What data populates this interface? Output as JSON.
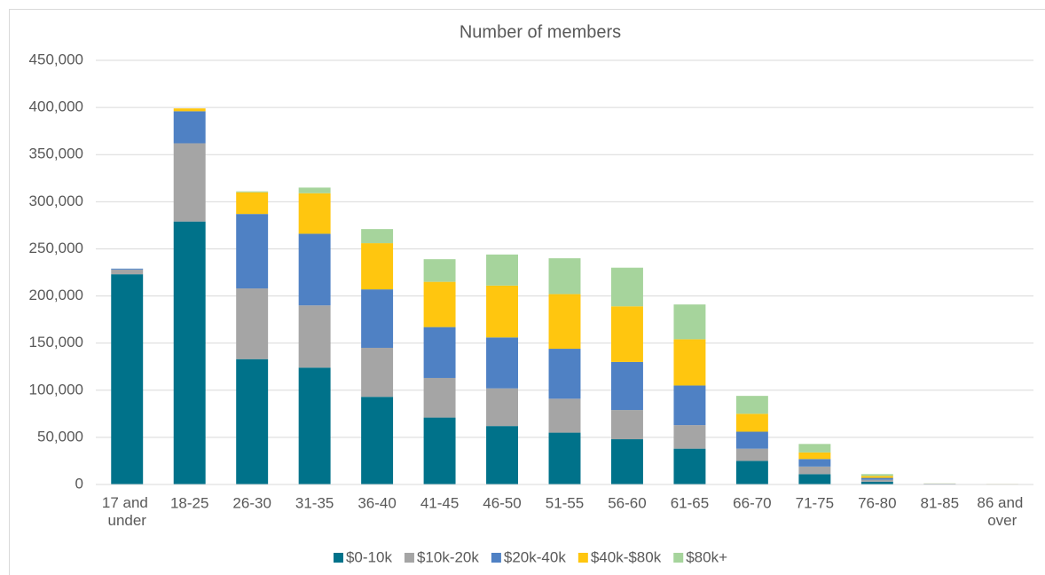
{
  "chart_data": {
    "type": "stacked_bar",
    "title": "Number of members",
    "categories": [
      "17 and under",
      "18-25",
      "26-30",
      "31-35",
      "36-40",
      "41-45",
      "46-50",
      "51-55",
      "56-60",
      "61-65",
      "66-70",
      "71-75",
      "76-80",
      "81-85",
      "86 and over"
    ],
    "series": [
      {
        "name": "$0-10k",
        "color": "#00728a",
        "values": [
          223000,
          279000,
          133000,
          124000,
          93000,
          71000,
          62000,
          55000,
          48000,
          38000,
          25000,
          11000,
          3000,
          500,
          300
        ]
      },
      {
        "name": "$10k-20k",
        "color": "#a5a5a5",
        "values": [
          5000,
          83000,
          75000,
          66000,
          52000,
          42000,
          40000,
          36000,
          31000,
          25000,
          13000,
          8000,
          2000,
          200,
          100
        ]
      },
      {
        "name": "$20k-40k",
        "color": "#4f81c4",
        "values": [
          1000,
          34000,
          79000,
          76000,
          62000,
          54000,
          54000,
          53000,
          51000,
          42000,
          18000,
          8000,
          2000,
          200,
          100
        ]
      },
      {
        "name": "$40k-$80k",
        "color": "#ffc60f",
        "values": [
          0,
          3000,
          23000,
          43000,
          49000,
          48000,
          55000,
          58000,
          59000,
          49000,
          19000,
          7000,
          2000,
          100,
          50
        ]
      },
      {
        "name": "$80k+",
        "color": "#a6d49c",
        "values": [
          0,
          0,
          1000,
          6000,
          15000,
          24000,
          33000,
          38000,
          41000,
          37000,
          19000,
          9000,
          2000,
          100,
          50
        ]
      }
    ],
    "ylim": [
      0,
      450000
    ],
    "yticks": [
      0,
      {
        "value": 50000,
        "label": "50,000"
      },
      {
        "value": 100000,
        "label": "100,000"
      },
      {
        "value": 150000,
        "label": "150,000"
      },
      {
        "value": 200000,
        "label": "200,000"
      },
      {
        "value": 250000,
        "label": "250,000"
      },
      {
        "value": 300000,
        "label": "300,000"
      },
      {
        "value": 350000,
        "label": "350,000"
      },
      {
        "value": 400000,
        "label": "400,000"
      },
      {
        "value": 450000,
        "label": "450,000"
      }
    ],
    "grid": true,
    "legend": "bottom"
  }
}
